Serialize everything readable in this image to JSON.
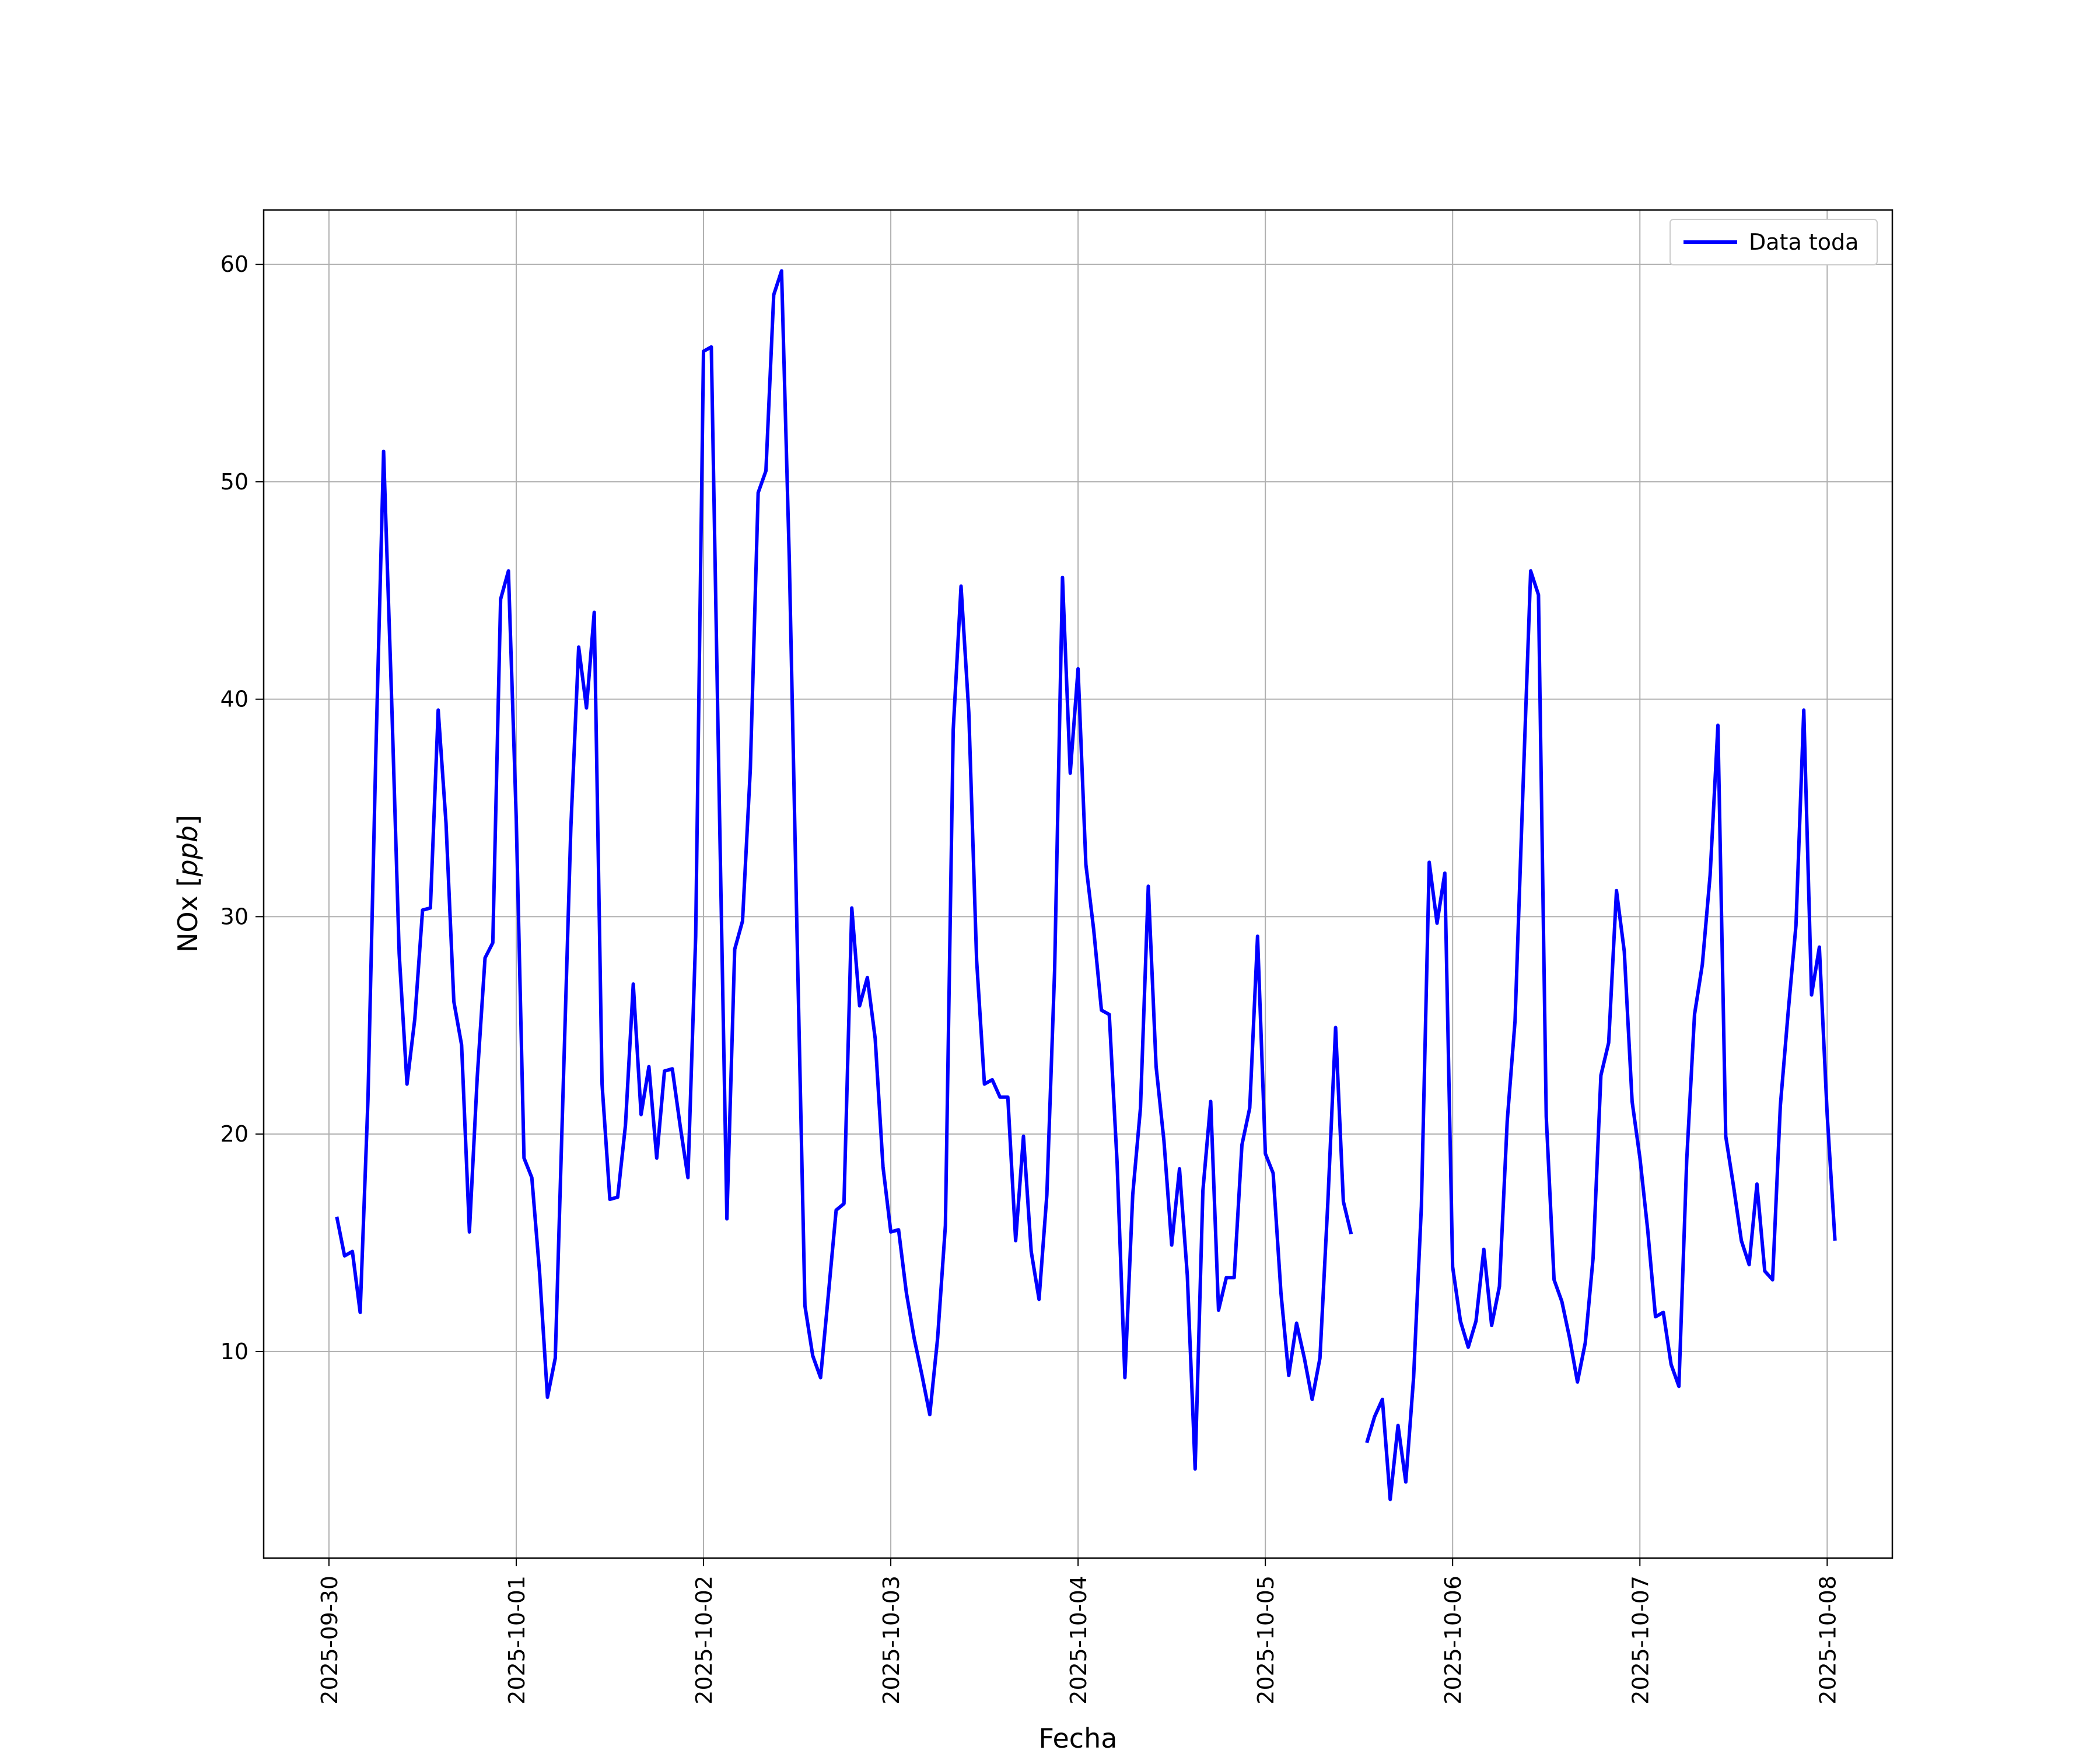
{
  "chart_data": {
    "type": "line",
    "xlabel": "Fecha",
    "ylabel_text": "NOx",
    "ylabel_unit": "ppb",
    "x_ticks": [
      "2025-09-30",
      "2025-10-01",
      "2025-10-02",
      "2025-10-03",
      "2025-10-04",
      "2025-10-05",
      "2025-10-06",
      "2025-10-07",
      "2025-10-08"
    ],
    "y_ticks": [
      10,
      20,
      30,
      40,
      50,
      60
    ],
    "xlim": [
      "2025-09-29 15:38",
      "2025-10-08 08:21"
    ],
    "ylim": [
      0.5,
      62.5
    ],
    "grid": true,
    "legend_position": "top-right",
    "series": [
      {
        "name": "Data toda",
        "color": "#0000ff",
        "points": [
          [
            "2025-09-30 01:00",
            16.2
          ],
          [
            "2025-09-30 02:00",
            14.4
          ],
          [
            "2025-09-30 03:00",
            14.6
          ],
          [
            "2025-09-30 04:00",
            11.8
          ],
          [
            "2025-09-30 05:00",
            21.6
          ],
          [
            "2025-09-30 06:00",
            37.4
          ],
          [
            "2025-09-30 07:00",
            51.4
          ],
          [
            "2025-09-30 08:00",
            40.4
          ],
          [
            "2025-09-30 09:00",
            28.3
          ],
          [
            "2025-09-30 10:00",
            22.3
          ],
          [
            "2025-09-30 11:00",
            25.3
          ],
          [
            "2025-09-30 12:00",
            30.3
          ],
          [
            "2025-09-30 13:00",
            30.4
          ],
          [
            "2025-09-30 14:00",
            39.5
          ],
          [
            "2025-09-30 15:00",
            34.3
          ],
          [
            "2025-09-30 16:00",
            26.1
          ],
          [
            "2025-09-30 17:00",
            24.1
          ],
          [
            "2025-09-30 18:00",
            15.5
          ],
          [
            "2025-09-30 19:00",
            22.6
          ],
          [
            "2025-09-30 20:00",
            28.1
          ],
          [
            "2025-09-30 21:00",
            28.8
          ],
          [
            "2025-09-30 22:00",
            44.6
          ],
          [
            "2025-09-30 23:00",
            45.9
          ],
          [
            "2025-10-01 00:00",
            34.5
          ],
          [
            "2025-10-01 01:00",
            18.9
          ],
          [
            "2025-10-01 02:00",
            18.0
          ],
          [
            "2025-10-01 03:00",
            13.6
          ],
          [
            "2025-10-01 04:00",
            7.9
          ],
          [
            "2025-10-01 05:00",
            9.7
          ],
          [
            "2025-10-01 06:00",
            21.9
          ],
          [
            "2025-10-01 07:00",
            34.1
          ],
          [
            "2025-10-01 08:00",
            42.4
          ],
          [
            "2025-10-01 09:00",
            39.6
          ],
          [
            "2025-10-01 10:00",
            44.0
          ],
          [
            "2025-10-01 11:00",
            22.3
          ],
          [
            "2025-10-01 12:00",
            17.0
          ],
          [
            "2025-10-01 13:00",
            17.1
          ],
          [
            "2025-10-01 14:00",
            20.4
          ],
          [
            "2025-10-01 15:00",
            26.9
          ],
          [
            "2025-10-01 16:00",
            20.9
          ],
          [
            "2025-10-01 17:00",
            23.1
          ],
          [
            "2025-10-01 18:00",
            18.9
          ],
          [
            "2025-10-01 19:00",
            22.9
          ],
          [
            "2025-10-01 20:00",
            23.0
          ],
          [
            "2025-10-01 21:00",
            20.4
          ],
          [
            "2025-10-01 22:00",
            18.0
          ],
          [
            "2025-10-01 23:00",
            29.1
          ],
          [
            "2025-10-02 00:00",
            56.0
          ],
          [
            "2025-10-02 01:00",
            56.2
          ],
          [
            "2025-10-02 02:00",
            35.7
          ],
          [
            "2025-10-02 03:00",
            16.1
          ],
          [
            "2025-10-02 04:00",
            28.5
          ],
          [
            "2025-10-02 05:00",
            29.8
          ],
          [
            "2025-10-02 06:00",
            36.8
          ],
          [
            "2025-10-02 07:00",
            49.5
          ],
          [
            "2025-10-02 08:00",
            50.5
          ],
          [
            "2025-10-02 09:00",
            58.6
          ],
          [
            "2025-10-02 10:00",
            59.7
          ],
          [
            "2025-10-02 11:00",
            46.3
          ],
          [
            "2025-10-02 12:00",
            29.0
          ],
          [
            "2025-10-02 13:00",
            12.1
          ],
          [
            "2025-10-02 14:00",
            9.8
          ],
          [
            "2025-10-02 15:00",
            8.8
          ],
          [
            "2025-10-02 16:00",
            12.6
          ],
          [
            "2025-10-02 17:00",
            16.5
          ],
          [
            "2025-10-02 18:00",
            16.8
          ],
          [
            "2025-10-02 19:00",
            30.4
          ],
          [
            "2025-10-02 20:00",
            25.9
          ],
          [
            "2025-10-02 21:00",
            27.2
          ],
          [
            "2025-10-02 22:00",
            24.4
          ],
          [
            "2025-10-02 23:00",
            18.5
          ],
          [
            "2025-10-03 00:00",
            15.5
          ],
          [
            "2025-10-03 01:00",
            15.6
          ],
          [
            "2025-10-03 02:00",
            12.7
          ],
          [
            "2025-10-03 03:00",
            10.6
          ],
          [
            "2025-10-03 04:00",
            8.9
          ],
          [
            "2025-10-03 05:00",
            7.1
          ],
          [
            "2025-10-03 06:00",
            10.6
          ],
          [
            "2025-10-03 07:00",
            15.8
          ],
          [
            "2025-10-03 08:00",
            38.6
          ],
          [
            "2025-10-03 09:00",
            45.2
          ],
          [
            "2025-10-03 10:00",
            39.4
          ],
          [
            "2025-10-03 11:00",
            28.0
          ],
          [
            "2025-10-03 12:00",
            22.3
          ],
          [
            "2025-10-03 13:00",
            22.5
          ],
          [
            "2025-10-03 14:00",
            21.7
          ],
          [
            "2025-10-03 15:00",
            21.7
          ],
          [
            "2025-10-03 16:00",
            15.1
          ],
          [
            "2025-10-03 17:00",
            19.9
          ],
          [
            "2025-10-03 18:00",
            14.6
          ],
          [
            "2025-10-03 19:00",
            12.4
          ],
          [
            "2025-10-03 20:00",
            17.2
          ],
          [
            "2025-10-03 21:00",
            27.6
          ],
          [
            "2025-10-03 22:00",
            45.6
          ],
          [
            "2025-10-03 23:00",
            36.6
          ],
          [
            "2025-10-04 00:00",
            41.4
          ],
          [
            "2025-10-04 01:00",
            32.4
          ],
          [
            "2025-10-04 02:00",
            29.4
          ],
          [
            "2025-10-04 03:00",
            25.7
          ],
          [
            "2025-10-04 04:00",
            25.5
          ],
          [
            "2025-10-04 05:00",
            18.7
          ],
          [
            "2025-10-04 06:00",
            8.8
          ],
          [
            "2025-10-04 07:00",
            17.2
          ],
          [
            "2025-10-04 08:00",
            21.2
          ],
          [
            "2025-10-04 09:00",
            31.4
          ],
          [
            "2025-10-04 10:00",
            23.1
          ],
          [
            "2025-10-04 11:00",
            19.7
          ],
          [
            "2025-10-04 12:00",
            14.9
          ],
          [
            "2025-10-04 13:00",
            18.4
          ],
          [
            "2025-10-04 14:00",
            13.5
          ],
          [
            "2025-10-04 15:00",
            4.6
          ],
          [
            "2025-10-04 16:00",
            17.4
          ],
          [
            "2025-10-04 17:00",
            21.5
          ],
          [
            "2025-10-04 18:00",
            11.9
          ],
          [
            "2025-10-04 19:00",
            13.4
          ],
          [
            "2025-10-04 20:00",
            13.4
          ],
          [
            "2025-10-04 21:00",
            19.5
          ],
          [
            "2025-10-04 22:00",
            21.2
          ],
          [
            "2025-10-04 23:00",
            29.1
          ],
          [
            "2025-10-05 00:00",
            19.1
          ],
          [
            "2025-10-05 01:00",
            18.2
          ],
          [
            "2025-10-05 02:00",
            12.7
          ],
          [
            "2025-10-05 03:00",
            8.9
          ],
          [
            "2025-10-05 04:00",
            11.3
          ],
          [
            "2025-10-05 05:00",
            9.7
          ],
          [
            "2025-10-05 06:00",
            7.8
          ],
          [
            "2025-10-05 07:00",
            9.7
          ],
          [
            "2025-10-05 08:00",
            16.8
          ],
          [
            "2025-10-05 09:00",
            24.9
          ],
          [
            "2025-10-05 10:00",
            16.9
          ],
          [
            "2025-10-05 11:00",
            15.4
          ],
          null,
          [
            "2025-10-05 13:00",
            5.8
          ],
          [
            "2025-10-05 14:00",
            7.0
          ],
          [
            "2025-10-05 15:00",
            7.8
          ],
          [
            "2025-10-05 16:00",
            3.2
          ],
          [
            "2025-10-05 17:00",
            6.6
          ],
          [
            "2025-10-05 18:00",
            4.0
          ],
          [
            "2025-10-05 19:00",
            8.8
          ],
          [
            "2025-10-05 20:00",
            16.7
          ],
          [
            "2025-10-05 21:00",
            32.5
          ],
          [
            "2025-10-05 22:00",
            29.7
          ],
          [
            "2025-10-05 23:00",
            32.0
          ],
          [
            "2025-10-06 00:00",
            13.9
          ],
          [
            "2025-10-06 01:00",
            11.4
          ],
          [
            "2025-10-06 02:00",
            10.2
          ],
          [
            "2025-10-06 03:00",
            11.4
          ],
          [
            "2025-10-06 04:00",
            14.7
          ],
          [
            "2025-10-06 05:00",
            11.2
          ],
          [
            "2025-10-06 06:00",
            13.0
          ],
          [
            "2025-10-06 07:00",
            20.6
          ],
          [
            "2025-10-06 08:00",
            25.2
          ],
          [
            "2025-10-06 09:00",
            35.7
          ],
          [
            "2025-10-06 10:00",
            45.9
          ],
          [
            "2025-10-06 11:00",
            44.8
          ],
          [
            "2025-10-06 12:00",
            20.8
          ],
          [
            "2025-10-06 13:00",
            13.3
          ],
          [
            "2025-10-06 14:00",
            12.3
          ],
          [
            "2025-10-06 15:00",
            10.6
          ],
          [
            "2025-10-06 16:00",
            8.6
          ],
          [
            "2025-10-06 17:00",
            10.4
          ],
          [
            "2025-10-06 18:00",
            14.3
          ],
          [
            "2025-10-06 19:00",
            22.7
          ],
          [
            "2025-10-06 20:00",
            24.2
          ],
          [
            "2025-10-06 21:00",
            31.2
          ],
          [
            "2025-10-06 22:00",
            28.4
          ],
          [
            "2025-10-06 23:00",
            21.5
          ],
          [
            "2025-10-07 00:00",
            18.9
          ],
          [
            "2025-10-07 01:00",
            15.6
          ],
          [
            "2025-10-07 02:00",
            11.6
          ],
          [
            "2025-10-07 03:00",
            11.8
          ],
          [
            "2025-10-07 04:00",
            9.4
          ],
          [
            "2025-10-07 05:00",
            8.4
          ],
          [
            "2025-10-07 06:00",
            18.8
          ],
          [
            "2025-10-07 07:00",
            25.5
          ],
          [
            "2025-10-07 08:00",
            27.8
          ],
          [
            "2025-10-07 09:00",
            31.9
          ],
          [
            "2025-10-07 10:00",
            38.8
          ],
          [
            "2025-10-07 11:00",
            19.9
          ],
          [
            "2025-10-07 12:00",
            17.6
          ],
          [
            "2025-10-07 13:00",
            15.1
          ],
          [
            "2025-10-07 14:00",
            14.0
          ],
          [
            "2025-10-07 15:00",
            17.7
          ],
          [
            "2025-10-07 16:00",
            13.7
          ],
          [
            "2025-10-07 17:00",
            13.3
          ],
          [
            "2025-10-07 18:00",
            21.3
          ],
          [
            "2025-10-07 19:00",
            25.6
          ],
          [
            "2025-10-07 20:00",
            29.6
          ],
          [
            "2025-10-07 21:00",
            39.5
          ],
          [
            "2025-10-07 22:00",
            26.4
          ],
          [
            "2025-10-07 23:00",
            28.6
          ],
          [
            "2025-10-08 00:00",
            20.9
          ],
          [
            "2025-10-08 01:00",
            15.1
          ]
        ]
      }
    ]
  }
}
